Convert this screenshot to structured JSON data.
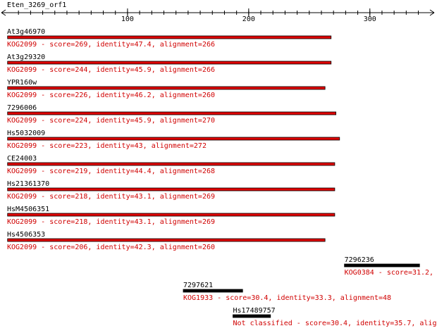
{
  "query": "Eten_3269_orf1",
  "axis": {
    "lim": [
      0,
      349
    ],
    "ticks": [
      100,
      200,
      300
    ]
  },
  "hits": [
    {
      "name": "At3g46970",
      "label": "KOG2099 - score=269, identity=47.4, alignment=266",
      "start": 1,
      "end": 268,
      "classified": true
    },
    {
      "name": "At3g29320",
      "label": "KOG2099 - score=244, identity=45.9, alignment=266",
      "start": 1,
      "end": 268,
      "classified": true
    },
    {
      "name": "YPR160w",
      "label": "KOG2099 - score=226, identity=46.2, alignment=260",
      "start": 1,
      "end": 263,
      "classified": true
    },
    {
      "name": "7296006",
      "label": "KOG2099 - score=224, identity=45.9, alignment=270",
      "start": 1,
      "end": 272,
      "classified": true
    },
    {
      "name": "Hs5032009",
      "label": "KOG2099 - score=223, identity=43, alignment=272",
      "start": 1,
      "end": 275,
      "classified": true
    },
    {
      "name": "CE24003",
      "label": "KOG2099 - score=219, identity=44.4, alignment=268",
      "start": 1,
      "end": 271,
      "classified": true
    },
    {
      "name": "Hs21361370",
      "label": "KOG2099 - score=218, identity=43.1, alignment=269",
      "start": 1,
      "end": 271,
      "classified": true
    },
    {
      "name": "HsM4506351",
      "label": "KOG2099 - score=218, identity=43.1, alignment=269",
      "start": 1,
      "end": 271,
      "classified": true
    },
    {
      "name": "Hs4506353",
      "label": "KOG2099 - score=206, identity=42.3, alignment=260",
      "start": 1,
      "end": 263,
      "classified": true
    },
    {
      "name": "7296236",
      "label": "KOG0384 - score=31.2,",
      "start": 279,
      "end": 341,
      "classified": false
    },
    {
      "name": "7297621",
      "label": "KOG1933 - score=30.4, identity=33.3, alignment=48",
      "start": 146,
      "end": 195,
      "classified": false
    },
    {
      "name": "Hs17489757",
      "label": "Not classified - score=30.4, identity=35.7, alig",
      "start": 187,
      "end": 218,
      "classified": false
    }
  ]
}
